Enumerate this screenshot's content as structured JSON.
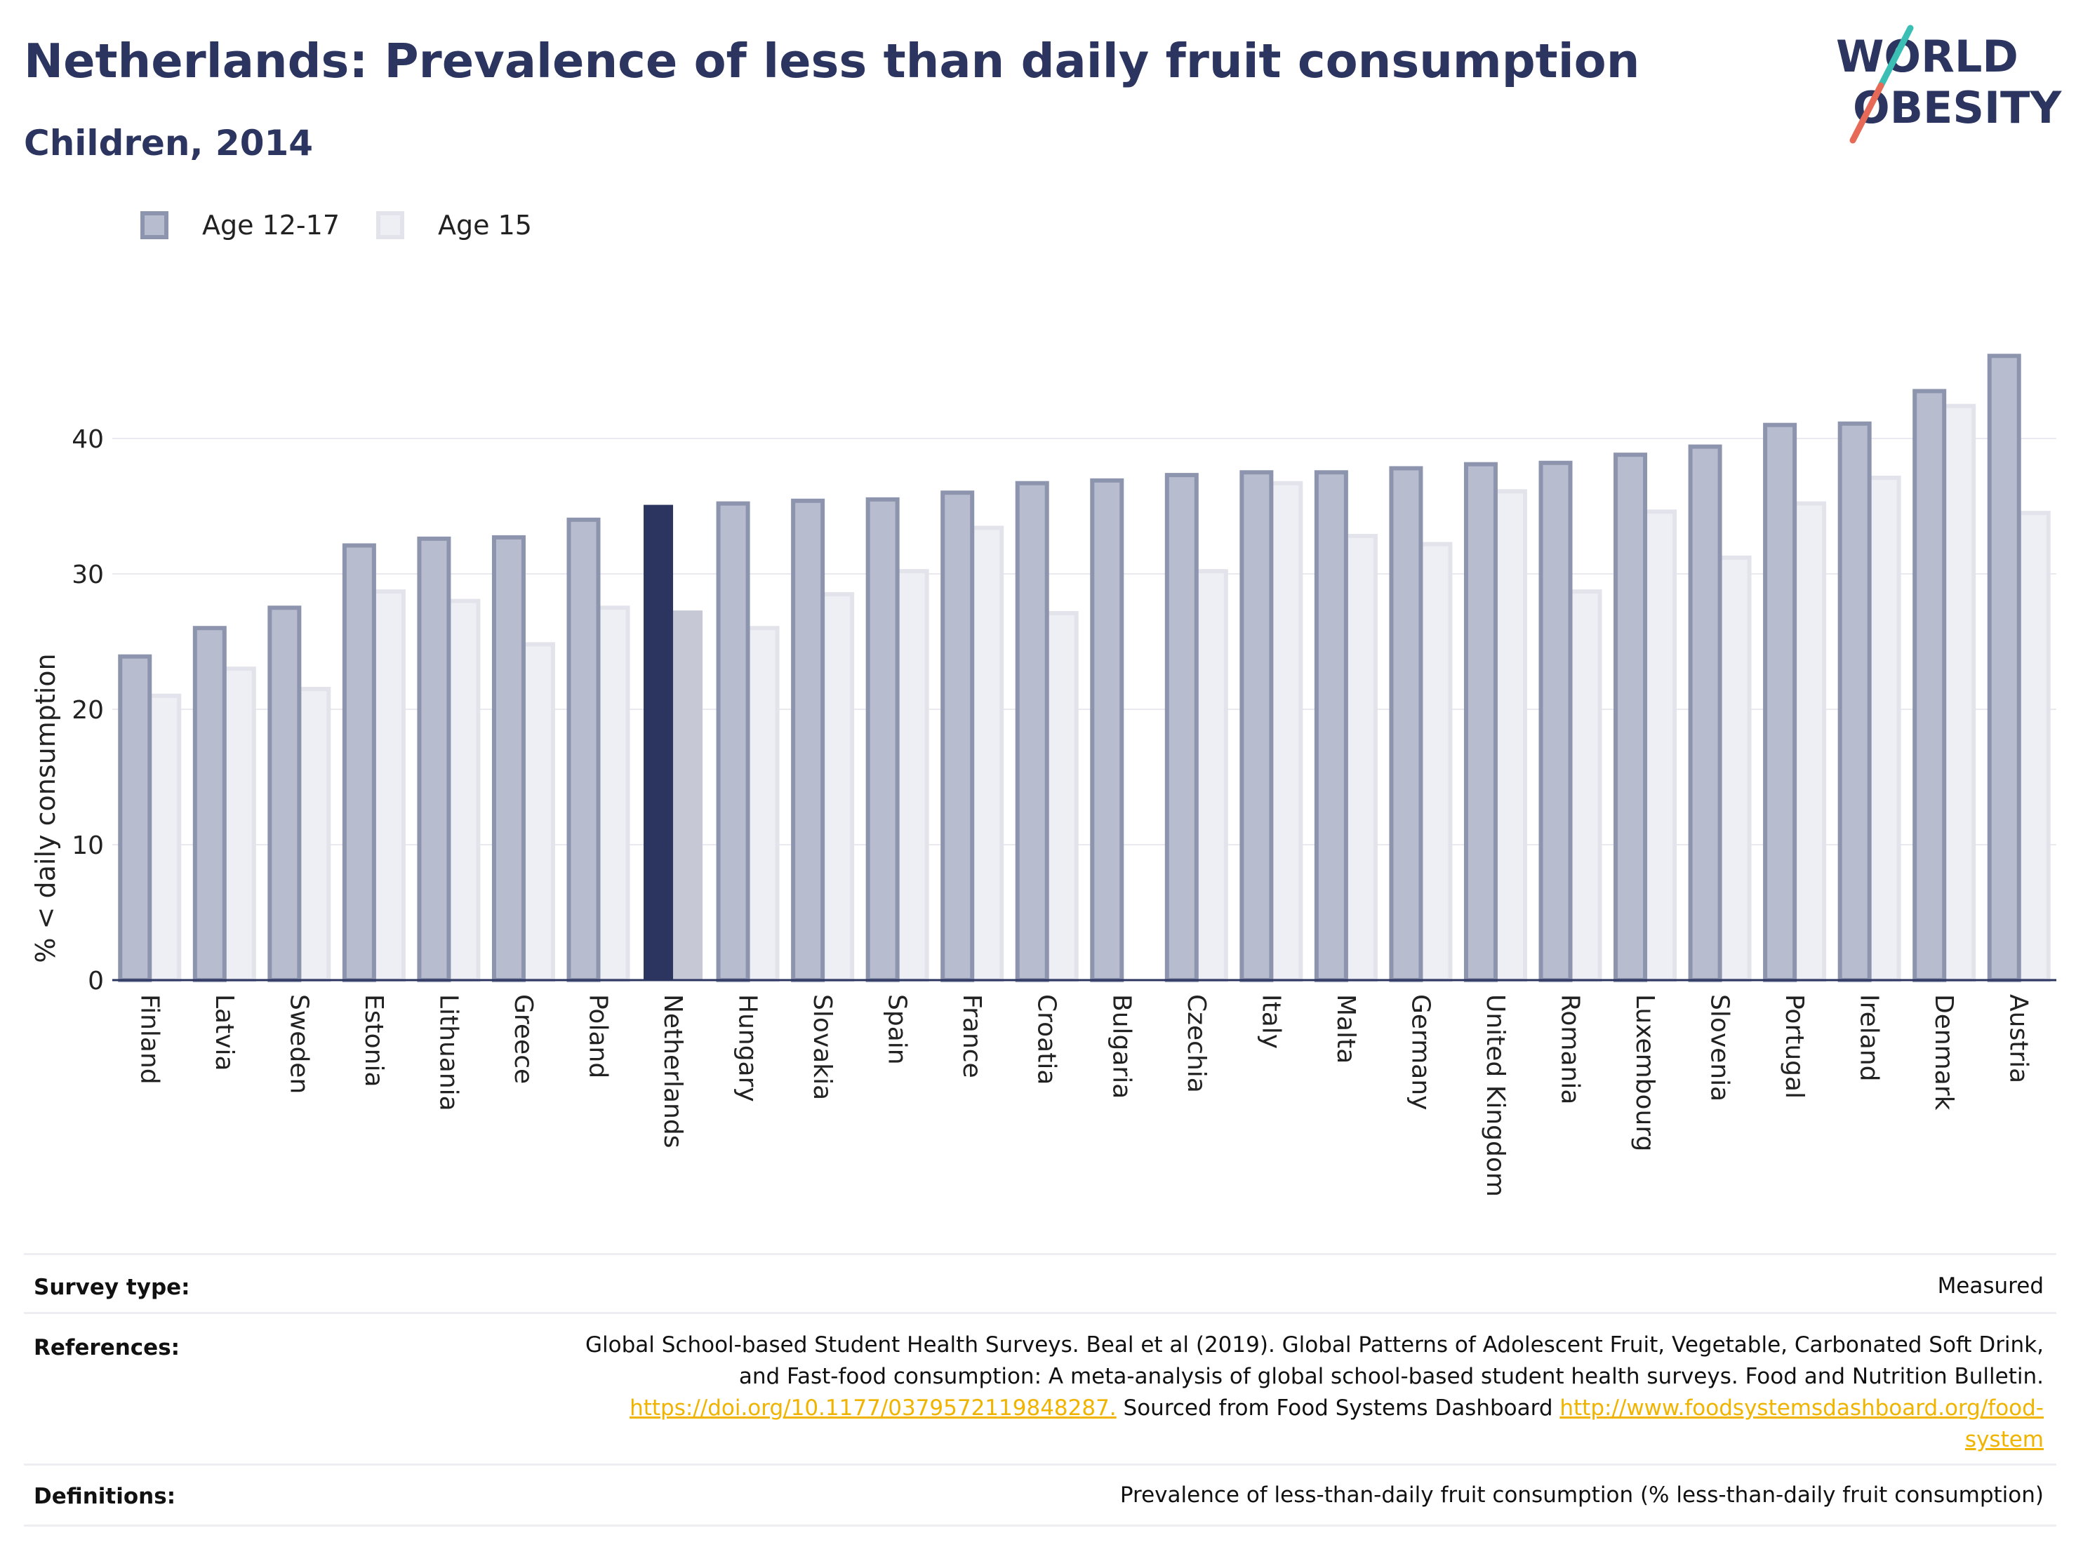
{
  "header": {
    "title": "Netherlands: Prevalence of less than daily fruit consumption",
    "subtitle": "Children, 2014",
    "logo_line1": "WORLD",
    "logo_line2": "OBESITY"
  },
  "legend": [
    {
      "label": "Age 12-17",
      "color": "#9fa5bd",
      "border": "#8890aa"
    },
    {
      "label": "Age 15",
      "color": "#e6e7ee",
      "border": "#dcdde6"
    }
  ],
  "chart_data": {
    "type": "bar",
    "ylabel": "% < daily consumption",
    "ylim": [
      0,
      50
    ],
    "yticks": [
      0,
      10,
      20,
      30,
      40
    ],
    "grid": true,
    "highlight_category": "Netherlands",
    "highlight_color": "#2b3560",
    "categories": [
      "Finland",
      "Latvia",
      "Sweden",
      "Estonia",
      "Lithuania",
      "Greece",
      "Poland",
      "Netherlands",
      "Hungary",
      "Slovakia",
      "Spain",
      "France",
      "Croatia",
      "Bulgaria",
      "Czechia",
      "Italy",
      "Malta",
      "Germany",
      "United Kingdom",
      "Romania",
      "Luxembourg",
      "Slovenia",
      "Portugal",
      "Ireland",
      "Denmark",
      "Austria"
    ],
    "series": [
      {
        "name": "Age 12-17",
        "values": [
          23.9,
          26.0,
          27.5,
          32.1,
          32.6,
          32.7,
          34.0,
          35.1,
          35.2,
          35.4,
          35.5,
          36.0,
          36.7,
          36.9,
          37.3,
          37.5,
          37.5,
          37.8,
          38.1,
          38.2,
          38.8,
          39.4,
          41.0,
          41.1,
          43.5,
          46.1
        ]
      },
      {
        "name": "Age 15",
        "values": [
          21.0,
          23.0,
          21.5,
          28.7,
          28.0,
          24.8,
          27.5,
          27.3,
          26.0,
          28.5,
          30.2,
          33.4,
          27.1,
          null,
          30.2,
          36.7,
          32.8,
          32.2,
          36.1,
          28.7,
          34.6,
          31.2,
          35.2,
          37.1,
          42.4,
          34.5
        ]
      }
    ]
  },
  "info": {
    "survey_label": "Survey type:",
    "survey_value": "Measured",
    "references_label": "References:",
    "references_line1": "Global School-based Student Health Surveys. Beal et al (2019). Global Patterns of Adolescent Fruit, Vegetable, Carbonated Soft Drink,",
    "references_line2": "and Fast-food consumption: A meta-analysis of global school-based student health surveys. Food and Nutrition Bulletin.",
    "references_link1": "https://doi.org/10.1177/0379572119848287.",
    "references_mid": " Sourced from Food Systems Dashboard ",
    "references_link2a": "http://www.foodsystemsdashboard.org/food-",
    "references_link2b": "system",
    "definitions_label": "Definitions:",
    "definitions_value": "Prevalence of less-than-daily fruit consumption (% less-than-daily fruit consumption)"
  }
}
